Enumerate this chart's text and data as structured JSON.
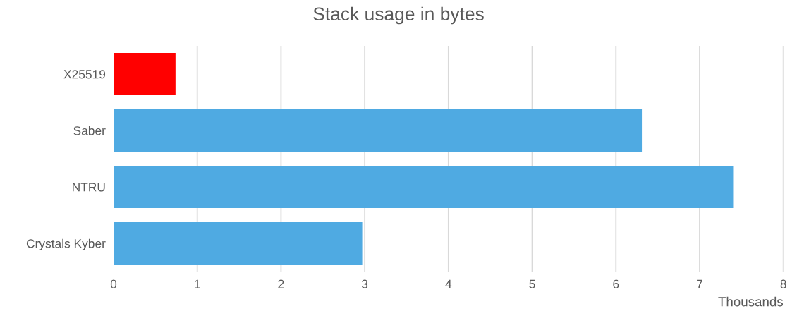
{
  "chart_data": {
    "type": "bar",
    "orientation": "horizontal",
    "title": "Stack usage in bytes",
    "xlabel": "Thousands",
    "categories": [
      "X25519",
      "Saber",
      "NTRU",
      "Crystals Kyber"
    ],
    "values": [
      0.74,
      6.31,
      7.4,
      2.97
    ],
    "colors": [
      "#ff0000",
      "#4faae2",
      "#4faae2",
      "#4faae2"
    ],
    "xlim": [
      0,
      8
    ],
    "xticks": [
      0,
      1,
      2,
      3,
      4,
      5,
      6,
      7,
      8
    ],
    "grid": "x"
  }
}
